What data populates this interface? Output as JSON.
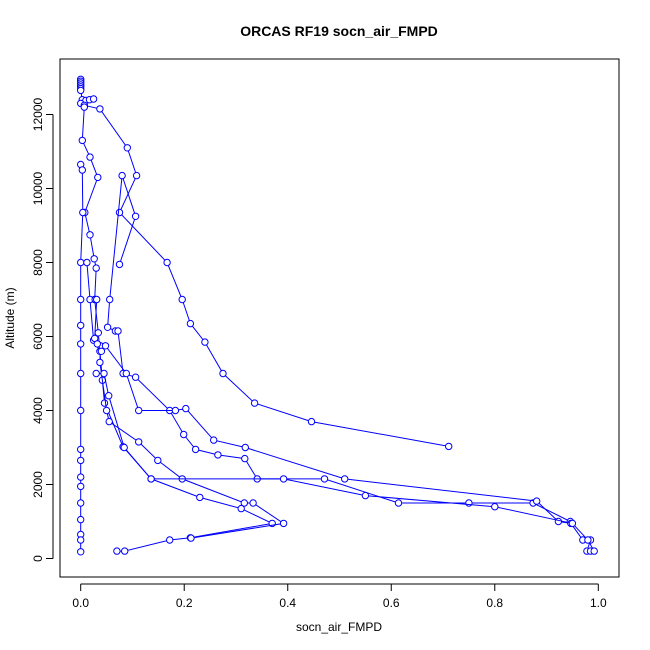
{
  "chart_data": {
    "type": "line",
    "title": "ORCAS RF19 socn_air_FMPD",
    "xlabel": "socn_air_FMPD",
    "ylabel": "Altitude (m)",
    "xlim": [
      -0.04,
      1.04
    ],
    "ylim": [
      -500,
      13500
    ],
    "xticks": [
      0.0,
      0.2,
      0.4,
      0.6,
      0.8,
      1.0
    ],
    "xtick_labels": [
      "0.0",
      "0.2",
      "0.4",
      "0.6",
      "0.8",
      "1.0"
    ],
    "yticks": [
      0,
      2000,
      4000,
      6000,
      8000,
      10000,
      12000
    ],
    "ytick_labels": [
      "0",
      "2000",
      "4000",
      "6000",
      "8000",
      "10000",
      "12000"
    ],
    "grid": false,
    "marker": "open-circle",
    "color": "#0000ff",
    "series": [
      {
        "values": [
          [
            0.0,
            12950
          ],
          [
            0.0,
            12900
          ],
          [
            0.0,
            12850
          ],
          [
            0.0,
            12800
          ],
          [
            0.0,
            12750
          ],
          [
            0.0,
            12700
          ],
          [
            0.0,
            12650
          ],
          [
            0.003,
            12400
          ],
          [
            0.01,
            12380
          ],
          [
            0.017,
            12400
          ],
          [
            0.025,
            12420
          ],
          [
            0.0,
            12300
          ],
          [
            0.007,
            12250
          ],
          [
            0.037,
            12150
          ],
          [
            0.09,
            11100
          ],
          [
            0.108,
            10350
          ],
          [
            0.075,
            9350
          ],
          [
            0.167,
            8000
          ],
          [
            0.196,
            7000
          ],
          [
            0.212,
            6350
          ],
          [
            0.24,
            5850
          ],
          [
            0.275,
            5000
          ],
          [
            0.336,
            4200
          ],
          [
            0.446,
            3700
          ],
          [
            0.711,
            3030
          ]
        ]
      },
      {
        "values": [
          [
            0.007,
            12200
          ],
          [
            0.003,
            11300
          ],
          [
            0.018,
            10850
          ],
          [
            0.033,
            10300
          ],
          [
            0.008,
            9350
          ],
          [
            0.018,
            8750
          ],
          [
            0.026,
            8100
          ],
          [
            0.03,
            7850
          ],
          [
            0.027,
            7000
          ],
          [
            0.034,
            6100
          ],
          [
            0.037,
            5600
          ],
          [
            0.042,
            4820
          ],
          [
            0.046,
            4200
          ],
          [
            0.082,
            3020
          ],
          [
            0.136,
            2150
          ],
          [
            0.23,
            1650
          ],
          [
            0.31,
            1350
          ],
          [
            0.37,
            950
          ],
          [
            0.212,
            560
          ],
          [
            0.172,
            500
          ],
          [
            0.085,
            200
          ],
          [
            0.07,
            200
          ]
        ]
      },
      {
        "values": [
          [
            0.0,
            10650
          ],
          [
            0.003,
            10500
          ],
          [
            0.004,
            9350
          ],
          [
            0.0,
            8000
          ],
          [
            0.0,
            7000
          ],
          [
            0.0,
            6300
          ],
          [
            0.0,
            5800
          ],
          [
            0.0,
            5000
          ],
          [
            0.0,
            4000
          ],
          [
            0.0,
            2950
          ],
          [
            0.0,
            2650
          ],
          [
            0.0,
            2200
          ],
          [
            0.0,
            1950
          ],
          [
            0.0,
            1500
          ],
          [
            0.0,
            1050
          ],
          [
            0.0,
            650
          ],
          [
            0.0,
            500
          ],
          [
            0.0,
            180
          ]
        ]
      },
      {
        "values": [
          [
            0.012,
            8000
          ],
          [
            0.018,
            7000
          ],
          [
            0.025,
            5900
          ],
          [
            0.038,
            5750
          ],
          [
            0.037,
            5300
          ],
          [
            0.05,
            4000
          ],
          [
            0.055,
            3700
          ],
          [
            0.112,
            3150
          ],
          [
            0.149,
            2650
          ],
          [
            0.196,
            2150
          ],
          [
            0.316,
            1500
          ],
          [
            0.333,
            1500
          ],
          [
            0.392,
            950
          ],
          [
            0.213,
            550
          ]
        ]
      },
      {
        "values": [
          [
            0.075,
            7950
          ],
          [
            0.106,
            9250
          ],
          [
            0.08,
            10350
          ],
          [
            0.056,
            7000
          ],
          [
            0.052,
            6250
          ],
          [
            0.067,
            6150
          ],
          [
            0.072,
            6150
          ],
          [
            0.082,
            5000
          ],
          [
            0.106,
            4900
          ],
          [
            0.172,
            4000
          ],
          [
            0.199,
            3350
          ],
          [
            0.222,
            2950
          ],
          [
            0.265,
            2800
          ],
          [
            0.317,
            2700
          ],
          [
            0.341,
            2150
          ],
          [
            0.471,
            2150
          ],
          [
            0.614,
            1500
          ],
          [
            0.75,
            1500
          ],
          [
            0.874,
            1500
          ],
          [
            0.946,
            1000
          ]
        ]
      },
      {
        "values": [
          [
            0.028,
            7000
          ],
          [
            0.031,
            7000
          ],
          [
            0.027,
            5950
          ],
          [
            0.032,
            5800
          ],
          [
            0.04,
            5600
          ],
          [
            0.048,
            5750
          ],
          [
            0.088,
            5000
          ],
          [
            0.112,
            4000
          ],
          [
            0.183,
            4000
          ],
          [
            0.203,
            4050
          ],
          [
            0.257,
            3200
          ],
          [
            0.318,
            3000
          ],
          [
            0.51,
            2150
          ],
          [
            0.881,
            1550
          ],
          [
            0.923,
            1000
          ],
          [
            0.947,
            950
          ],
          [
            0.97,
            500
          ],
          [
            0.985,
            500
          ],
          [
            0.978,
            200
          ],
          [
            0.985,
            200
          ]
        ]
      },
      {
        "values": [
          [
            0.03,
            5000
          ],
          [
            0.045,
            5000
          ],
          [
            0.054,
            4400
          ],
          [
            0.084,
            3000
          ],
          [
            0.136,
            2150
          ],
          [
            0.392,
            2150
          ],
          [
            0.55,
            1700
          ],
          [
            0.8,
            1400
          ],
          [
            0.95,
            950
          ],
          [
            0.98,
            500
          ],
          [
            0.992,
            200
          ]
        ]
      }
    ]
  }
}
